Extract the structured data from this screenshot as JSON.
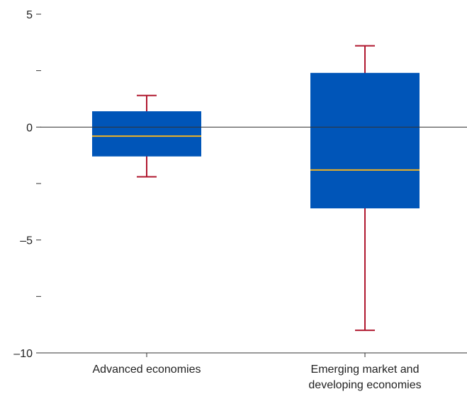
{
  "chart_data": {
    "type": "box",
    "title": "",
    "xlabel": "",
    "ylabel": "",
    "ylim": [
      -10,
      5
    ],
    "yticks": [
      {
        "value": 5,
        "label": "5"
      },
      {
        "value": 2.5,
        "label": ""
      },
      {
        "value": 0,
        "label": "0"
      },
      {
        "value": -2.5,
        "label": ""
      },
      {
        "value": -5,
        "label": "–5"
      },
      {
        "value": -7.5,
        "label": ""
      },
      {
        "value": -10,
        "label": "–10"
      }
    ],
    "categories": [
      [
        "Advanced economies"
      ],
      [
        "Emerging market and",
        "developing economies"
      ]
    ],
    "boxes": [
      {
        "whisker_low": -2.2,
        "q1": -1.3,
        "median": -0.4,
        "q3": 0.7,
        "whisker_high": 1.4
      },
      {
        "whisker_low": -9.0,
        "q1": -3.6,
        "median": -1.9,
        "q3": 2.4,
        "whisker_high": 3.6
      }
    ],
    "zero_line": true,
    "grid": false,
    "colors": {
      "box": "#0055b8",
      "median": "#f0b323",
      "whisker": "#b0182f",
      "axis": "#333333"
    }
  }
}
